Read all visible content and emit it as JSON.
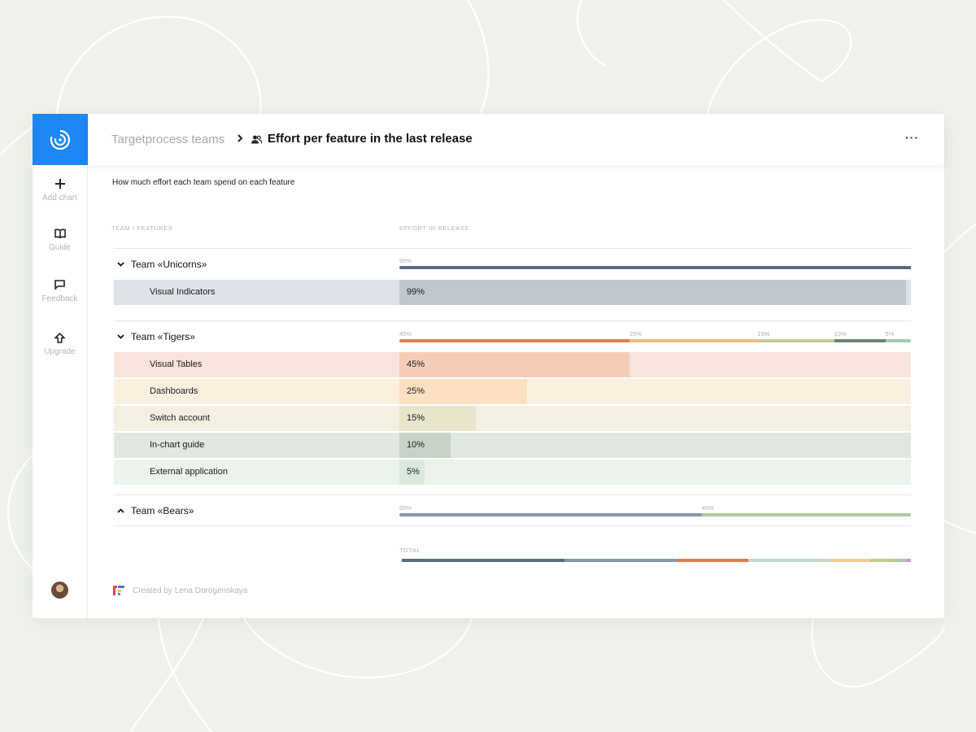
{
  "breadcrumb": {
    "parent": "Targetprocess teams",
    "title": "Effort per feature in the last release"
  },
  "header": {
    "more_label": "···"
  },
  "sidebar": {
    "items": [
      {
        "label": "Add chart",
        "icon": "plus-icon"
      },
      {
        "label": "Guide",
        "icon": "book-icon"
      },
      {
        "label": "Feedback",
        "icon": "comment-icon"
      },
      {
        "label": "Upgrade",
        "icon": "upgrade-arrow-icon"
      }
    ]
  },
  "subtitle": "How much effort each team spend  on each feature",
  "columns": {
    "team": "TEAM / FEATURES",
    "effort": "EFFORT IN RELEASE"
  },
  "teams": [
    {
      "name": "Team «Unicorns»",
      "expanded": true,
      "segments": [
        {
          "label": "99%",
          "value": 99,
          "color": "#5b6b82"
        }
      ],
      "features": [
        {
          "name": "Visual Indicators",
          "pct": "99%",
          "value": 99,
          "color": "#c2c8d0",
          "bg": "#dfe2e6"
        }
      ]
    },
    {
      "name": "Team «Tigers»",
      "expanded": true,
      "segments": [
        {
          "label": "45%",
          "value": 45,
          "color": "#e07f53"
        },
        {
          "label": "25%",
          "value": 25,
          "color": "#f2b97f"
        },
        {
          "label": "15%",
          "value": 15,
          "color": "#c4c894"
        },
        {
          "label": "10%",
          "value": 10,
          "color": "#6b8374"
        },
        {
          "label": "5%",
          "value": 5,
          "color": "#a5c8b0"
        }
      ],
      "features": [
        {
          "name": "Visual Tables",
          "pct": "45%",
          "value": 45,
          "color": "#f4cdb9",
          "bg": "#f8e4dc"
        },
        {
          "name": "Dashboards",
          "pct": "25%",
          "value": 25,
          "color": "#fbe1c2",
          "bg": "#fbf0e0"
        },
        {
          "name": "Switch account",
          "pct": "15%",
          "value": 15,
          "color": "#e6e6cb",
          "bg": "#f1f0e1"
        },
        {
          "name": "In-chart guide",
          "pct": "10%",
          "value": 10,
          "color": "#c8d3c8",
          "bg": "#e1e7e1"
        },
        {
          "name": "External application",
          "pct": "5%",
          "value": 5,
          "color": "#dce9de",
          "bg": "#ecf3ed"
        }
      ]
    },
    {
      "name": "Team «Bears»",
      "expanded": false,
      "segments": [
        {
          "label": "65%",
          "value": 65,
          "color": "#8598ad"
        },
        {
          "label": "45%",
          "value": 45,
          "color": "#a9cba2"
        }
      ],
      "features": []
    }
  ],
  "total": {
    "label": "TOTAL",
    "segments": [
      {
        "value": 32,
        "color": "#5b6b82"
      },
      {
        "value": 22,
        "color": "#8598ad"
      },
      {
        "value": 14,
        "color": "#e07f53"
      },
      {
        "value": 16,
        "color": "#c3d9c9"
      },
      {
        "value": 8,
        "color": "#f2c88f"
      },
      {
        "value": 4.5,
        "color": "#c4c894"
      },
      {
        "value": 2.5,
        "color": "#a5c8b0"
      },
      {
        "value": 1,
        "color": "#c59bd6"
      }
    ]
  },
  "footer": {
    "credit": "Created by Lena Dorogenskaya"
  },
  "colors": {
    "brand": "#1e86f5"
  }
}
